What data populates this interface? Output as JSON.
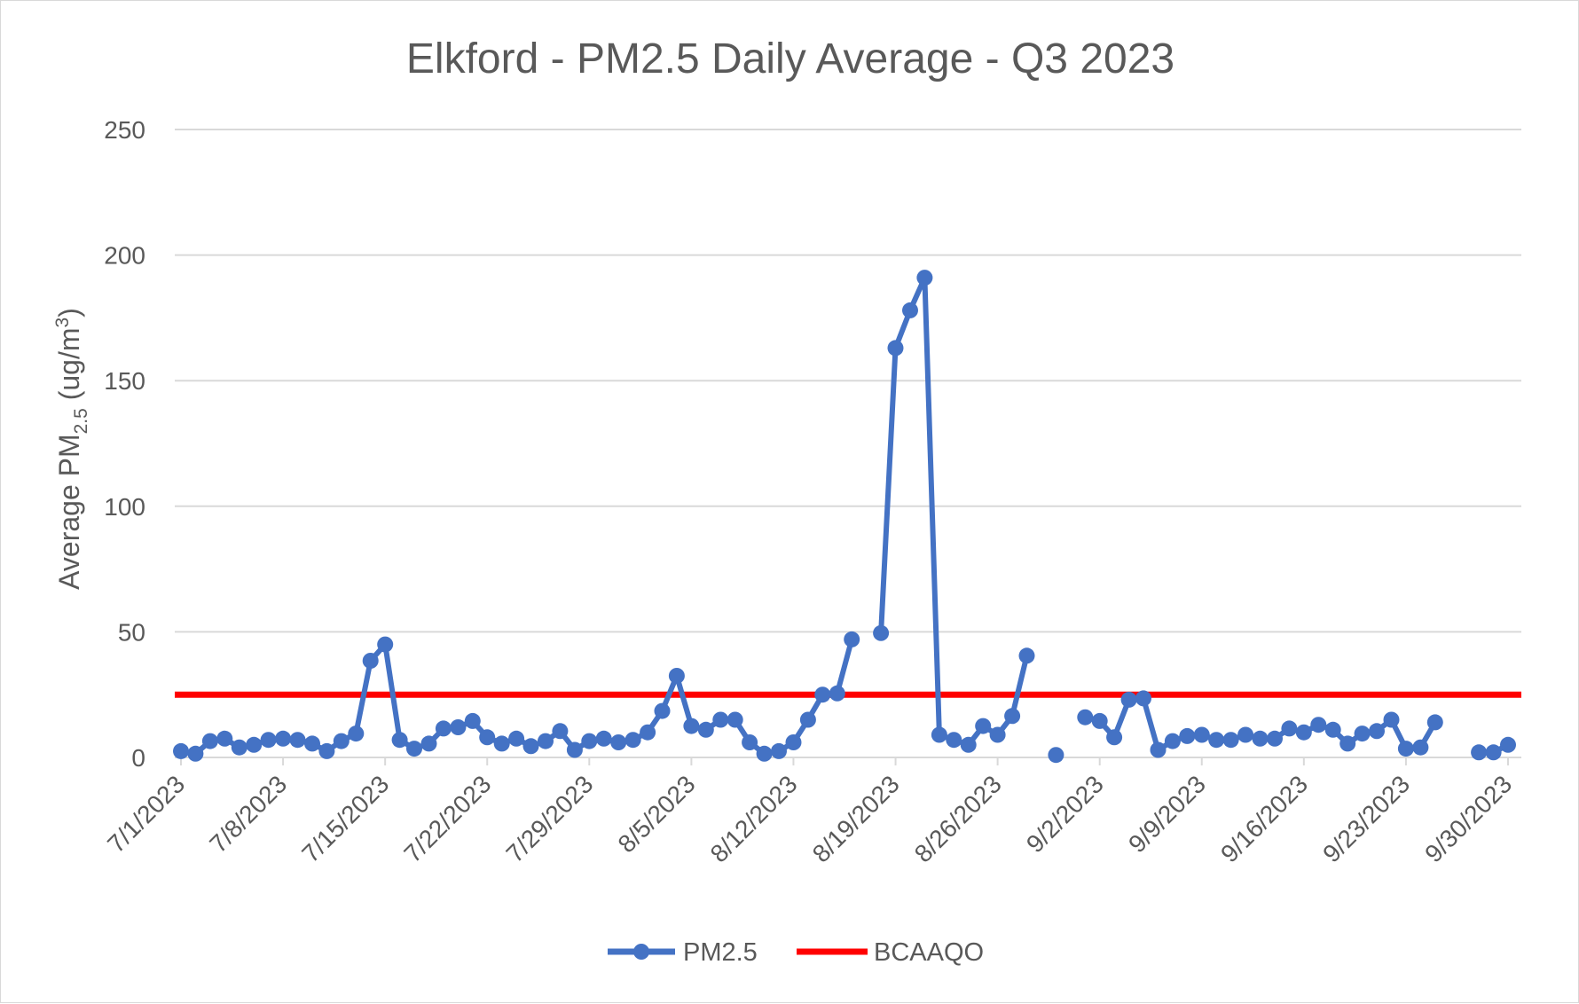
{
  "chart_data": {
    "type": "line",
    "title": "Elkford - PM2.5 Daily Average - Q3 2023",
    "ylabel": {
      "main": "Average PM",
      "sub": "2.5",
      "unit": " (ug/m",
      "sup": "3",
      "close": ")"
    },
    "ylim": [
      0,
      250
    ],
    "yticks": [
      0,
      50,
      100,
      150,
      200,
      250
    ],
    "xaxis": {
      "start": "2023-07-01",
      "end": "2023-09-30"
    },
    "xtick_dates": [
      "2023-07-01",
      "2023-07-08",
      "2023-07-15",
      "2023-07-22",
      "2023-07-29",
      "2023-08-05",
      "2023-08-12",
      "2023-08-19",
      "2023-08-26",
      "2023-09-02",
      "2023-09-09",
      "2023-09-16",
      "2023-09-23",
      "2023-09-30"
    ],
    "xtick_labels": [
      "7/1/2023",
      "7/8/2023",
      "7/15/2023",
      "7/22/2023",
      "7/29/2023",
      "8/5/2023",
      "8/12/2023",
      "8/19/2023",
      "8/26/2023",
      "9/2/2023",
      "9/9/2023",
      "9/16/2023",
      "9/23/2023",
      "9/30/2023"
    ],
    "grid": true,
    "legend_position": "bottom",
    "series": [
      {
        "name": "PM2.5",
        "color": "#4472c4",
        "marker": "circle",
        "points": [
          [
            "2023-07-01",
            2.5
          ],
          [
            "2023-07-02",
            1.5
          ],
          [
            "2023-07-03",
            6.5
          ],
          [
            "2023-07-04",
            7.5
          ],
          [
            "2023-07-05",
            4
          ],
          [
            "2023-07-06",
            5
          ],
          [
            "2023-07-07",
            7
          ],
          [
            "2023-07-08",
            7.5
          ],
          [
            "2023-07-09",
            7
          ],
          [
            "2023-07-10",
            5.5
          ],
          [
            "2023-07-11",
            2.5
          ],
          [
            "2023-07-12",
            6.5
          ],
          [
            "2023-07-13",
            9.5
          ],
          [
            "2023-07-14",
            38.5
          ],
          [
            "2023-07-15",
            45
          ],
          [
            "2023-07-16",
            7
          ],
          [
            "2023-07-17",
            3.5
          ],
          [
            "2023-07-18",
            5.5
          ],
          [
            "2023-07-19",
            11.5
          ],
          [
            "2023-07-20",
            12
          ],
          [
            "2023-07-21",
            14.5
          ],
          [
            "2023-07-22",
            8
          ],
          [
            "2023-07-23",
            5.5
          ],
          [
            "2023-07-24",
            7.5
          ],
          [
            "2023-07-25",
            4.5
          ],
          [
            "2023-07-26",
            6.5
          ],
          [
            "2023-07-27",
            10.5
          ],
          [
            "2023-07-28",
            3
          ],
          [
            "2023-07-29",
            6.5
          ],
          [
            "2023-07-30",
            7.5
          ],
          [
            "2023-07-31",
            6
          ],
          [
            "2023-08-01",
            7
          ],
          [
            "2023-08-02",
            10
          ],
          [
            "2023-08-03",
            18.5
          ],
          [
            "2023-08-04",
            32.5
          ],
          [
            "2023-08-05",
            12.5
          ],
          [
            "2023-08-06",
            11
          ],
          [
            "2023-08-07",
            15
          ],
          [
            "2023-08-08",
            15
          ],
          [
            "2023-08-09",
            6
          ],
          [
            "2023-08-10",
            1.5
          ],
          [
            "2023-08-11",
            2.5
          ],
          [
            "2023-08-12",
            6
          ],
          [
            "2023-08-13",
            15
          ],
          [
            "2023-08-14",
            25
          ],
          [
            "2023-08-15",
            25.5
          ],
          [
            "2023-08-16",
            47
          ],
          [
            "2023-08-17",
            null
          ],
          [
            "2023-08-18",
            49.5
          ],
          [
            "2023-08-19",
            163
          ],
          [
            "2023-08-20",
            178
          ],
          [
            "2023-08-21",
            191
          ],
          [
            "2023-08-22",
            9
          ],
          [
            "2023-08-23",
            7
          ],
          [
            "2023-08-24",
            5
          ],
          [
            "2023-08-25",
            12.5
          ],
          [
            "2023-08-26",
            9
          ],
          [
            "2023-08-27",
            16.5
          ],
          [
            "2023-08-28",
            40.5
          ],
          [
            "2023-08-29",
            null
          ],
          [
            "2023-08-30",
            1
          ],
          [
            "2023-08-31",
            null
          ],
          [
            "2023-09-01",
            16
          ],
          [
            "2023-09-02",
            14.5
          ],
          [
            "2023-09-03",
            8
          ],
          [
            "2023-09-04",
            23
          ],
          [
            "2023-09-05",
            23.5
          ],
          [
            "2023-09-06",
            3
          ],
          [
            "2023-09-07",
            6.5
          ],
          [
            "2023-09-08",
            8.5
          ],
          [
            "2023-09-09",
            9
          ],
          [
            "2023-09-10",
            7
          ],
          [
            "2023-09-11",
            7
          ],
          [
            "2023-09-12",
            9
          ],
          [
            "2023-09-13",
            7.5
          ],
          [
            "2023-09-14",
            7.5
          ],
          [
            "2023-09-15",
            11.5
          ],
          [
            "2023-09-16",
            10
          ],
          [
            "2023-09-17",
            13
          ],
          [
            "2023-09-18",
            11
          ],
          [
            "2023-09-19",
            5.5
          ],
          [
            "2023-09-20",
            9.5
          ],
          [
            "2023-09-21",
            10.5
          ],
          [
            "2023-09-22",
            15
          ],
          [
            "2023-09-23",
            3.5
          ],
          [
            "2023-09-24",
            4
          ],
          [
            "2023-09-25",
            14
          ],
          [
            "2023-09-26",
            null
          ],
          [
            "2023-09-27",
            null
          ],
          [
            "2023-09-28",
            2
          ],
          [
            "2023-09-29",
            2
          ],
          [
            "2023-09-30",
            5
          ]
        ]
      },
      {
        "name": "BCAAQO",
        "color": "#ff0000",
        "marker": "none",
        "points": [
          [
            "2023-07-01",
            25
          ],
          [
            "2023-09-30",
            25
          ]
        ]
      }
    ]
  }
}
